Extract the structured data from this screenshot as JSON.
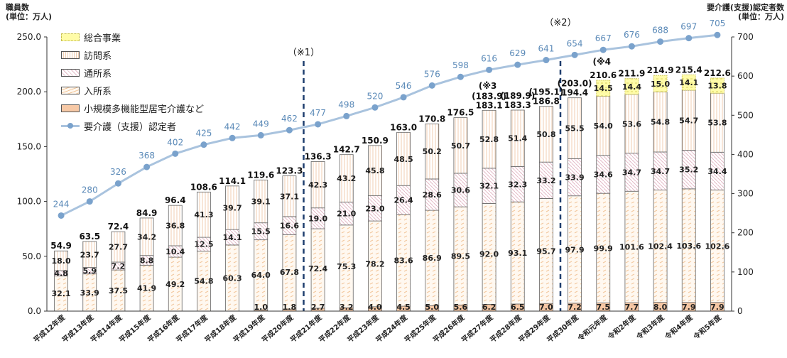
{
  "header": {
    "left_title": "職員数",
    "left_unit": "(単位：万人)",
    "right_title": "要介護(支援)認定者数",
    "right_unit": "(単位：万人)"
  },
  "legend": [
    {
      "key": "sogo",
      "label": "総合事業"
    },
    {
      "key": "homon",
      "label": "訪問系"
    },
    {
      "key": "tsusho",
      "label": "通所系"
    },
    {
      "key": "nyusho",
      "label": "入所系"
    },
    {
      "key": "shokibo",
      "label": "小規模多機能型居宅介護など"
    },
    {
      "key": "line",
      "label": "要介護（支援）認定者"
    }
  ],
  "colors": {
    "axis": "#333333",
    "line": "#a9c3de",
    "marker": "#7aa2cc",
    "line_label": "#5b8ab8",
    "divider": "#1f3e6e",
    "nyusho_fill": "#fff8f0",
    "nyusho_dash": "#f2c79b",
    "tsusho_hatch": "#e3b9c6",
    "homon_stripe": "#f0cdb0",
    "shokibo_fill": "#f7c9a6",
    "sogo_fill": "#fffca8",
    "sogo_dash": "#d8d060"
  },
  "annotations": [
    {
      "text": "（※1）",
      "after_index": 8
    },
    {
      "text": "（※2）",
      "after_index": 17
    },
    {
      "text": "(※3",
      "index": 15
    },
    {
      "text": "(※4",
      "index": 19
    }
  ],
  "chart_data": {
    "type": "bar",
    "stacked": true,
    "categories": [
      "平成12年度",
      "平成13年度",
      "平成14年度",
      "平成15年度",
      "平成16年度",
      "平成17年度",
      "平成18年度",
      "平成19年度",
      "平成20年度",
      "平成21年度",
      "平成22年度",
      "平成23年度",
      "平成24年度",
      "平成25年度",
      "平成26年度",
      "平成27年度",
      "平成28年度",
      "平成29年度",
      "平成30年度",
      "令和元年度",
      "令和2年度",
      "令和3年度",
      "令和4年度",
      "令和5年度"
    ],
    "y_left": {
      "min": 0,
      "max": 250,
      "ticks": [
        "0.0",
        "50.0",
        "100.0",
        "150.0",
        "200.0",
        "250.0"
      ]
    },
    "y_right": {
      "min": 0,
      "max": 700,
      "ticks": [
        "0",
        "100",
        "200",
        "300",
        "400",
        "500",
        "600",
        "700"
      ]
    },
    "series": [
      {
        "name": "小規模多機能型居宅介護など",
        "key": "shokibo",
        "values": [
          null,
          null,
          null,
          null,
          null,
          null,
          null,
          1.0,
          1.8,
          2.7,
          3.2,
          4.0,
          4.5,
          5.0,
          5.6,
          6.2,
          6.5,
          7.0,
          7.2,
          7.5,
          7.7,
          8.0,
          7.9,
          7.9
        ]
      },
      {
        "name": "入所系",
        "key": "nyusho",
        "values": [
          32.1,
          33.9,
          37.5,
          41.9,
          49.2,
          54.8,
          60.3,
          64.0,
          67.8,
          72.4,
          75.3,
          78.2,
          83.6,
          86.9,
          89.5,
          92.0,
          93.1,
          95.7,
          97.9,
          99.9,
          101.6,
          102.4,
          103.6,
          102.6
        ]
      },
      {
        "name": "通所系",
        "key": "tsusho",
        "values": [
          4.8,
          5.9,
          7.2,
          8.8,
          10.4,
          12.5,
          14.1,
          15.5,
          16.6,
          19.0,
          21.0,
          23.0,
          26.4,
          28.6,
          30.6,
          32.1,
          32.3,
          33.2,
          33.9,
          34.6,
          34.7,
          34.7,
          35.2,
          34.4
        ]
      },
      {
        "name": "訪問系",
        "key": "homon",
        "values": [
          18.0,
          23.7,
          27.7,
          34.2,
          36.8,
          41.3,
          39.7,
          39.1,
          37.1,
          42.3,
          43.2,
          45.8,
          48.5,
          50.2,
          50.7,
          52.8,
          51.4,
          50.8,
          55.5,
          54.0,
          53.6,
          54.8,
          54.7,
          53.8
        ]
      },
      {
        "name": "総合事業",
        "key": "sogo",
        "values": [
          null,
          null,
          null,
          null,
          null,
          null,
          null,
          null,
          null,
          null,
          null,
          null,
          null,
          null,
          null,
          null,
          null,
          null,
          null,
          14.5,
          14.4,
          15.0,
          14.1,
          13.8
        ]
      }
    ],
    "segment_labels": {
      "shokibo": [
        "",
        "",
        "",
        "",
        "",
        "",
        "",
        "1.0",
        "1.8",
        "2.7",
        "3.2",
        "4.0",
        "4.5",
        "5.0",
        "5.6",
        "6.2",
        "6.5",
        "7.0",
        "7.2",
        "7.5",
        "7.7",
        "8.0",
        "7.9",
        "7.9"
      ],
      "nyusho": [
        "32.1",
        "33.9",
        "37.5",
        "41.9",
        "49.2",
        "54.8",
        "60.3",
        "64.0",
        "67.8",
        "72.4",
        "75.3",
        "78.2",
        "83.6",
        "86.9",
        "89.5",
        "92.0",
        "93.1",
        "95.7",
        "97.9",
        "99.9",
        "101.6",
        "102.4",
        "103.6",
        "102.6"
      ],
      "tsusho": [
        "4.8",
        "5.9",
        "7.2",
        "8.8",
        "10.4",
        "12.5",
        "14.1",
        "15.5",
        "16.6",
        "19.0",
        "21.0",
        "23.0",
        "26.4",
        "28.6",
        "30.6",
        "32.1",
        "32.3",
        "33.2",
        "33.9",
        "34.6",
        "34.7",
        "34.7",
        "35.2",
        "34.4"
      ],
      "homon": [
        "18.0",
        "23.7",
        "27.7",
        "34.2",
        "36.8",
        "41.3",
        "39.7",
        "39.1",
        "37.1",
        "42.3",
        "43.2",
        "45.8",
        "48.5",
        "50.2",
        "50.7",
        "52.8",
        "51.4",
        "50.8",
        "55.5",
        "54.0",
        "53.6",
        "54.8",
        "54.7",
        "53.8"
      ],
      "sogo": [
        "",
        "",
        "",
        "",
        "",
        "",
        "",
        "",
        "",
        "",
        "",
        "",
        "",
        "",
        "",
        "",
        "",
        "",
        "",
        "14.5",
        "14.4",
        "15.0",
        "14.1",
        "13.8"
      ]
    },
    "totals": [
      "54.9",
      "63.5",
      "72.4",
      "84.9",
      "96.4",
      "108.6",
      "114.1",
      "119.6",
      "123.3",
      "136.3",
      "142.7",
      "150.9",
      "163.0",
      "170.8",
      "176.5",
      "183.1",
      "183.3",
      "186.8",
      "194.4",
      "210.6",
      "211.9",
      "214.9",
      "215.4",
      "212.6"
    ],
    "totals_alt": [
      "",
      "",
      "",
      "",
      "",
      "",
      "",
      "",
      "",
      "",
      "",
      "",
      "",
      "",
      "",
      "(183.9)",
      "(189.9)",
      "(195.1)",
      "(203.0)",
      "",
      "",
      "",
      "",
      ""
    ],
    "line": {
      "name": "要介護（支援）認定者",
      "axis": "right",
      "values": [
        244,
        280,
        326,
        368,
        402,
        425,
        442,
        449,
        462,
        477,
        498,
        520,
        546,
        576,
        598,
        616,
        629,
        641,
        654,
        667,
        676,
        688,
        697,
        705
      ]
    }
  }
}
